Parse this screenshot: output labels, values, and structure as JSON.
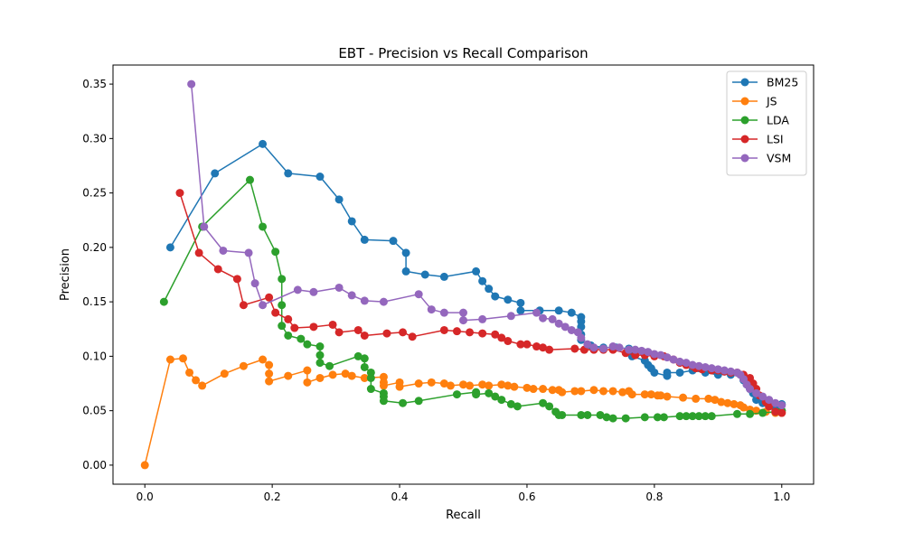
{
  "chart_data": {
    "type": "line",
    "title": "EBT - Precision vs Recall Comparison",
    "xlabel": "Recall",
    "ylabel": "Precision",
    "xlim": [
      -0.05,
      1.05
    ],
    "ylim": [
      -0.0175,
      0.3675
    ],
    "xticks": [
      "0.0",
      "0.2",
      "0.4",
      "0.6",
      "0.8",
      "1.0"
    ],
    "yticks": [
      "0.00",
      "0.05",
      "0.10",
      "0.15",
      "0.20",
      "0.25",
      "0.30",
      "0.35"
    ],
    "grid": false,
    "legend_position": "top-right",
    "series": [
      {
        "name": "BM25",
        "color": "#1f77b4",
        "x": [
          0.04,
          0.11,
          0.185,
          0.225,
          0.275,
          0.305,
          0.325,
          0.345,
          0.39,
          0.41,
          0.41,
          0.44,
          0.47,
          0.52,
          0.53,
          0.54,
          0.55,
          0.57,
          0.59,
          0.59,
          0.62,
          0.65,
          0.67,
          0.685,
          0.685,
          0.685,
          0.685,
          0.685,
          0.7,
          0.72,
          0.74,
          0.76,
          0.765,
          0.785,
          0.79,
          0.795,
          0.8,
          0.82,
          0.82,
          0.84,
          0.86,
          0.88,
          0.9,
          0.91,
          0.92,
          0.935,
          0.94,
          0.945,
          0.95,
          0.955,
          0.96,
          0.97,
          0.98,
          0.99,
          1.0,
          1.0
        ],
        "y": [
          0.2,
          0.268,
          0.295,
          0.268,
          0.265,
          0.244,
          0.224,
          0.207,
          0.206,
          0.195,
          0.178,
          0.175,
          0.173,
          0.178,
          0.169,
          0.162,
          0.155,
          0.152,
          0.149,
          0.142,
          0.142,
          0.142,
          0.14,
          0.136,
          0.132,
          0.127,
          0.12,
          0.115,
          0.11,
          0.108,
          0.108,
          0.107,
          0.1,
          0.096,
          0.092,
          0.089,
          0.085,
          0.082,
          0.085,
          0.085,
          0.087,
          0.085,
          0.083,
          0.086,
          0.083,
          0.083,
          0.078,
          0.074,
          0.07,
          0.066,
          0.06,
          0.057,
          0.054,
          0.051,
          0.05,
          0.056
        ]
      },
      {
        "name": "JS",
        "color": "#ff7f0e",
        "x": [
          0.0,
          0.04,
          0.06,
          0.07,
          0.08,
          0.09,
          0.125,
          0.155,
          0.185,
          0.195,
          0.195,
          0.195,
          0.225,
          0.255,
          0.255,
          0.275,
          0.295,
          0.315,
          0.325,
          0.345,
          0.375,
          0.375,
          0.375,
          0.4,
          0.4,
          0.43,
          0.45,
          0.47,
          0.48,
          0.5,
          0.51,
          0.53,
          0.54,
          0.56,
          0.57,
          0.58,
          0.6,
          0.61,
          0.625,
          0.64,
          0.65,
          0.655,
          0.675,
          0.685,
          0.705,
          0.72,
          0.735,
          0.75,
          0.76,
          0.765,
          0.785,
          0.795,
          0.805,
          0.81,
          0.82,
          0.845,
          0.865,
          0.885,
          0.895,
          0.905,
          0.915,
          0.925,
          0.935,
          0.94,
          0.95,
          0.96,
          0.975,
          0.99,
          1.0
        ],
        "y": [
          0.0,
          0.097,
          0.098,
          0.085,
          0.078,
          0.073,
          0.084,
          0.091,
          0.097,
          0.092,
          0.084,
          0.077,
          0.082,
          0.087,
          0.076,
          0.08,
          0.083,
          0.084,
          0.082,
          0.08,
          0.081,
          0.076,
          0.073,
          0.076,
          0.072,
          0.075,
          0.076,
          0.075,
          0.073,
          0.074,
          0.073,
          0.074,
          0.073,
          0.074,
          0.073,
          0.072,
          0.071,
          0.07,
          0.07,
          0.069,
          0.069,
          0.067,
          0.068,
          0.068,
          0.069,
          0.068,
          0.068,
          0.067,
          0.068,
          0.065,
          0.065,
          0.065,
          0.064,
          0.064,
          0.063,
          0.062,
          0.061,
          0.061,
          0.06,
          0.058,
          0.057,
          0.056,
          0.055,
          0.053,
          0.051,
          0.05,
          0.049,
          0.048,
          0.048
        ]
      },
      {
        "name": "LDA",
        "color": "#2ca02c",
        "x": [
          0.03,
          0.09,
          0.165,
          0.185,
          0.205,
          0.215,
          0.215,
          0.215,
          0.225,
          0.245,
          0.255,
          0.275,
          0.275,
          0.275,
          0.29,
          0.335,
          0.345,
          0.345,
          0.355,
          0.355,
          0.355,
          0.375,
          0.375,
          0.375,
          0.405,
          0.43,
          0.49,
          0.52,
          0.52,
          0.54,
          0.55,
          0.56,
          0.575,
          0.585,
          0.625,
          0.635,
          0.645,
          0.65,
          0.655,
          0.685,
          0.695,
          0.715,
          0.725,
          0.735,
          0.755,
          0.785,
          0.805,
          0.815,
          0.84,
          0.85,
          0.86,
          0.87,
          0.88,
          0.89,
          0.93,
          0.95,
          0.97,
          0.99,
          1.0
        ],
        "y": [
          0.15,
          0.219,
          0.262,
          0.219,
          0.196,
          0.171,
          0.147,
          0.128,
          0.119,
          0.116,
          0.111,
          0.109,
          0.101,
          0.094,
          0.091,
          0.1,
          0.098,
          0.09,
          0.085,
          0.08,
          0.07,
          0.066,
          0.063,
          0.059,
          0.057,
          0.059,
          0.065,
          0.067,
          0.065,
          0.066,
          0.063,
          0.06,
          0.056,
          0.054,
          0.057,
          0.054,
          0.049,
          0.046,
          0.046,
          0.046,
          0.046,
          0.046,
          0.044,
          0.043,
          0.043,
          0.044,
          0.044,
          0.044,
          0.045,
          0.045,
          0.045,
          0.045,
          0.045,
          0.045,
          0.047,
          0.047,
          0.048,
          0.049,
          0.05
        ]
      },
      {
        "name": "LSI",
        "color": "#d62728",
        "x": [
          0.055,
          0.085,
          0.115,
          0.145,
          0.155,
          0.195,
          0.205,
          0.225,
          0.235,
          0.265,
          0.295,
          0.305,
          0.335,
          0.345,
          0.38,
          0.405,
          0.42,
          0.47,
          0.49,
          0.51,
          0.53,
          0.55,
          0.56,
          0.57,
          0.59,
          0.6,
          0.615,
          0.625,
          0.635,
          0.675,
          0.69,
          0.705,
          0.72,
          0.735,
          0.755,
          0.77,
          0.785,
          0.8,
          0.815,
          0.83,
          0.84,
          0.85,
          0.86,
          0.865,
          0.875,
          0.89,
          0.9,
          0.91,
          0.92,
          0.93,
          0.94,
          0.95,
          0.955,
          0.96,
          0.965,
          0.975,
          0.98,
          0.99,
          1.0
        ],
        "y": [
          0.25,
          0.195,
          0.18,
          0.171,
          0.147,
          0.154,
          0.14,
          0.134,
          0.126,
          0.127,
          0.129,
          0.122,
          0.124,
          0.119,
          0.121,
          0.122,
          0.118,
          0.124,
          0.123,
          0.122,
          0.121,
          0.12,
          0.117,
          0.114,
          0.111,
          0.111,
          0.109,
          0.108,
          0.106,
          0.107,
          0.106,
          0.106,
          0.106,
          0.106,
          0.103,
          0.101,
          0.101,
          0.1,
          0.1,
          0.097,
          0.094,
          0.092,
          0.091,
          0.089,
          0.088,
          0.087,
          0.087,
          0.086,
          0.085,
          0.085,
          0.083,
          0.08,
          0.075,
          0.07,
          0.064,
          0.058,
          0.054,
          0.049,
          0.048
        ]
      },
      {
        "name": "VSM",
        "color": "#9467bd",
        "x": [
          0.073,
          0.093,
          0.123,
          0.163,
          0.173,
          0.185,
          0.24,
          0.265,
          0.305,
          0.325,
          0.345,
          0.375,
          0.43,
          0.45,
          0.47,
          0.5,
          0.5,
          0.53,
          0.575,
          0.615,
          0.625,
          0.64,
          0.65,
          0.66,
          0.67,
          0.68,
          0.685,
          0.695,
          0.705,
          0.72,
          0.735,
          0.745,
          0.76,
          0.77,
          0.78,
          0.79,
          0.8,
          0.81,
          0.82,
          0.83,
          0.84,
          0.85,
          0.86,
          0.87,
          0.88,
          0.89,
          0.9,
          0.91,
          0.92,
          0.93,
          0.935,
          0.94,
          0.945,
          0.95,
          0.96,
          0.97,
          0.98,
          0.99,
          1.0
        ],
        "y": [
          0.35,
          0.219,
          0.197,
          0.195,
          0.167,
          0.147,
          0.161,
          0.159,
          0.163,
          0.156,
          0.151,
          0.15,
          0.157,
          0.143,
          0.14,
          0.14,
          0.133,
          0.134,
          0.137,
          0.14,
          0.135,
          0.134,
          0.13,
          0.127,
          0.124,
          0.122,
          0.117,
          0.111,
          0.108,
          0.107,
          0.109,
          0.108,
          0.106,
          0.106,
          0.105,
          0.104,
          0.102,
          0.101,
          0.099,
          0.097,
          0.095,
          0.094,
          0.092,
          0.091,
          0.09,
          0.089,
          0.088,
          0.087,
          0.086,
          0.085,
          0.083,
          0.079,
          0.074,
          0.07,
          0.066,
          0.063,
          0.06,
          0.057,
          0.055
        ]
      }
    ]
  }
}
